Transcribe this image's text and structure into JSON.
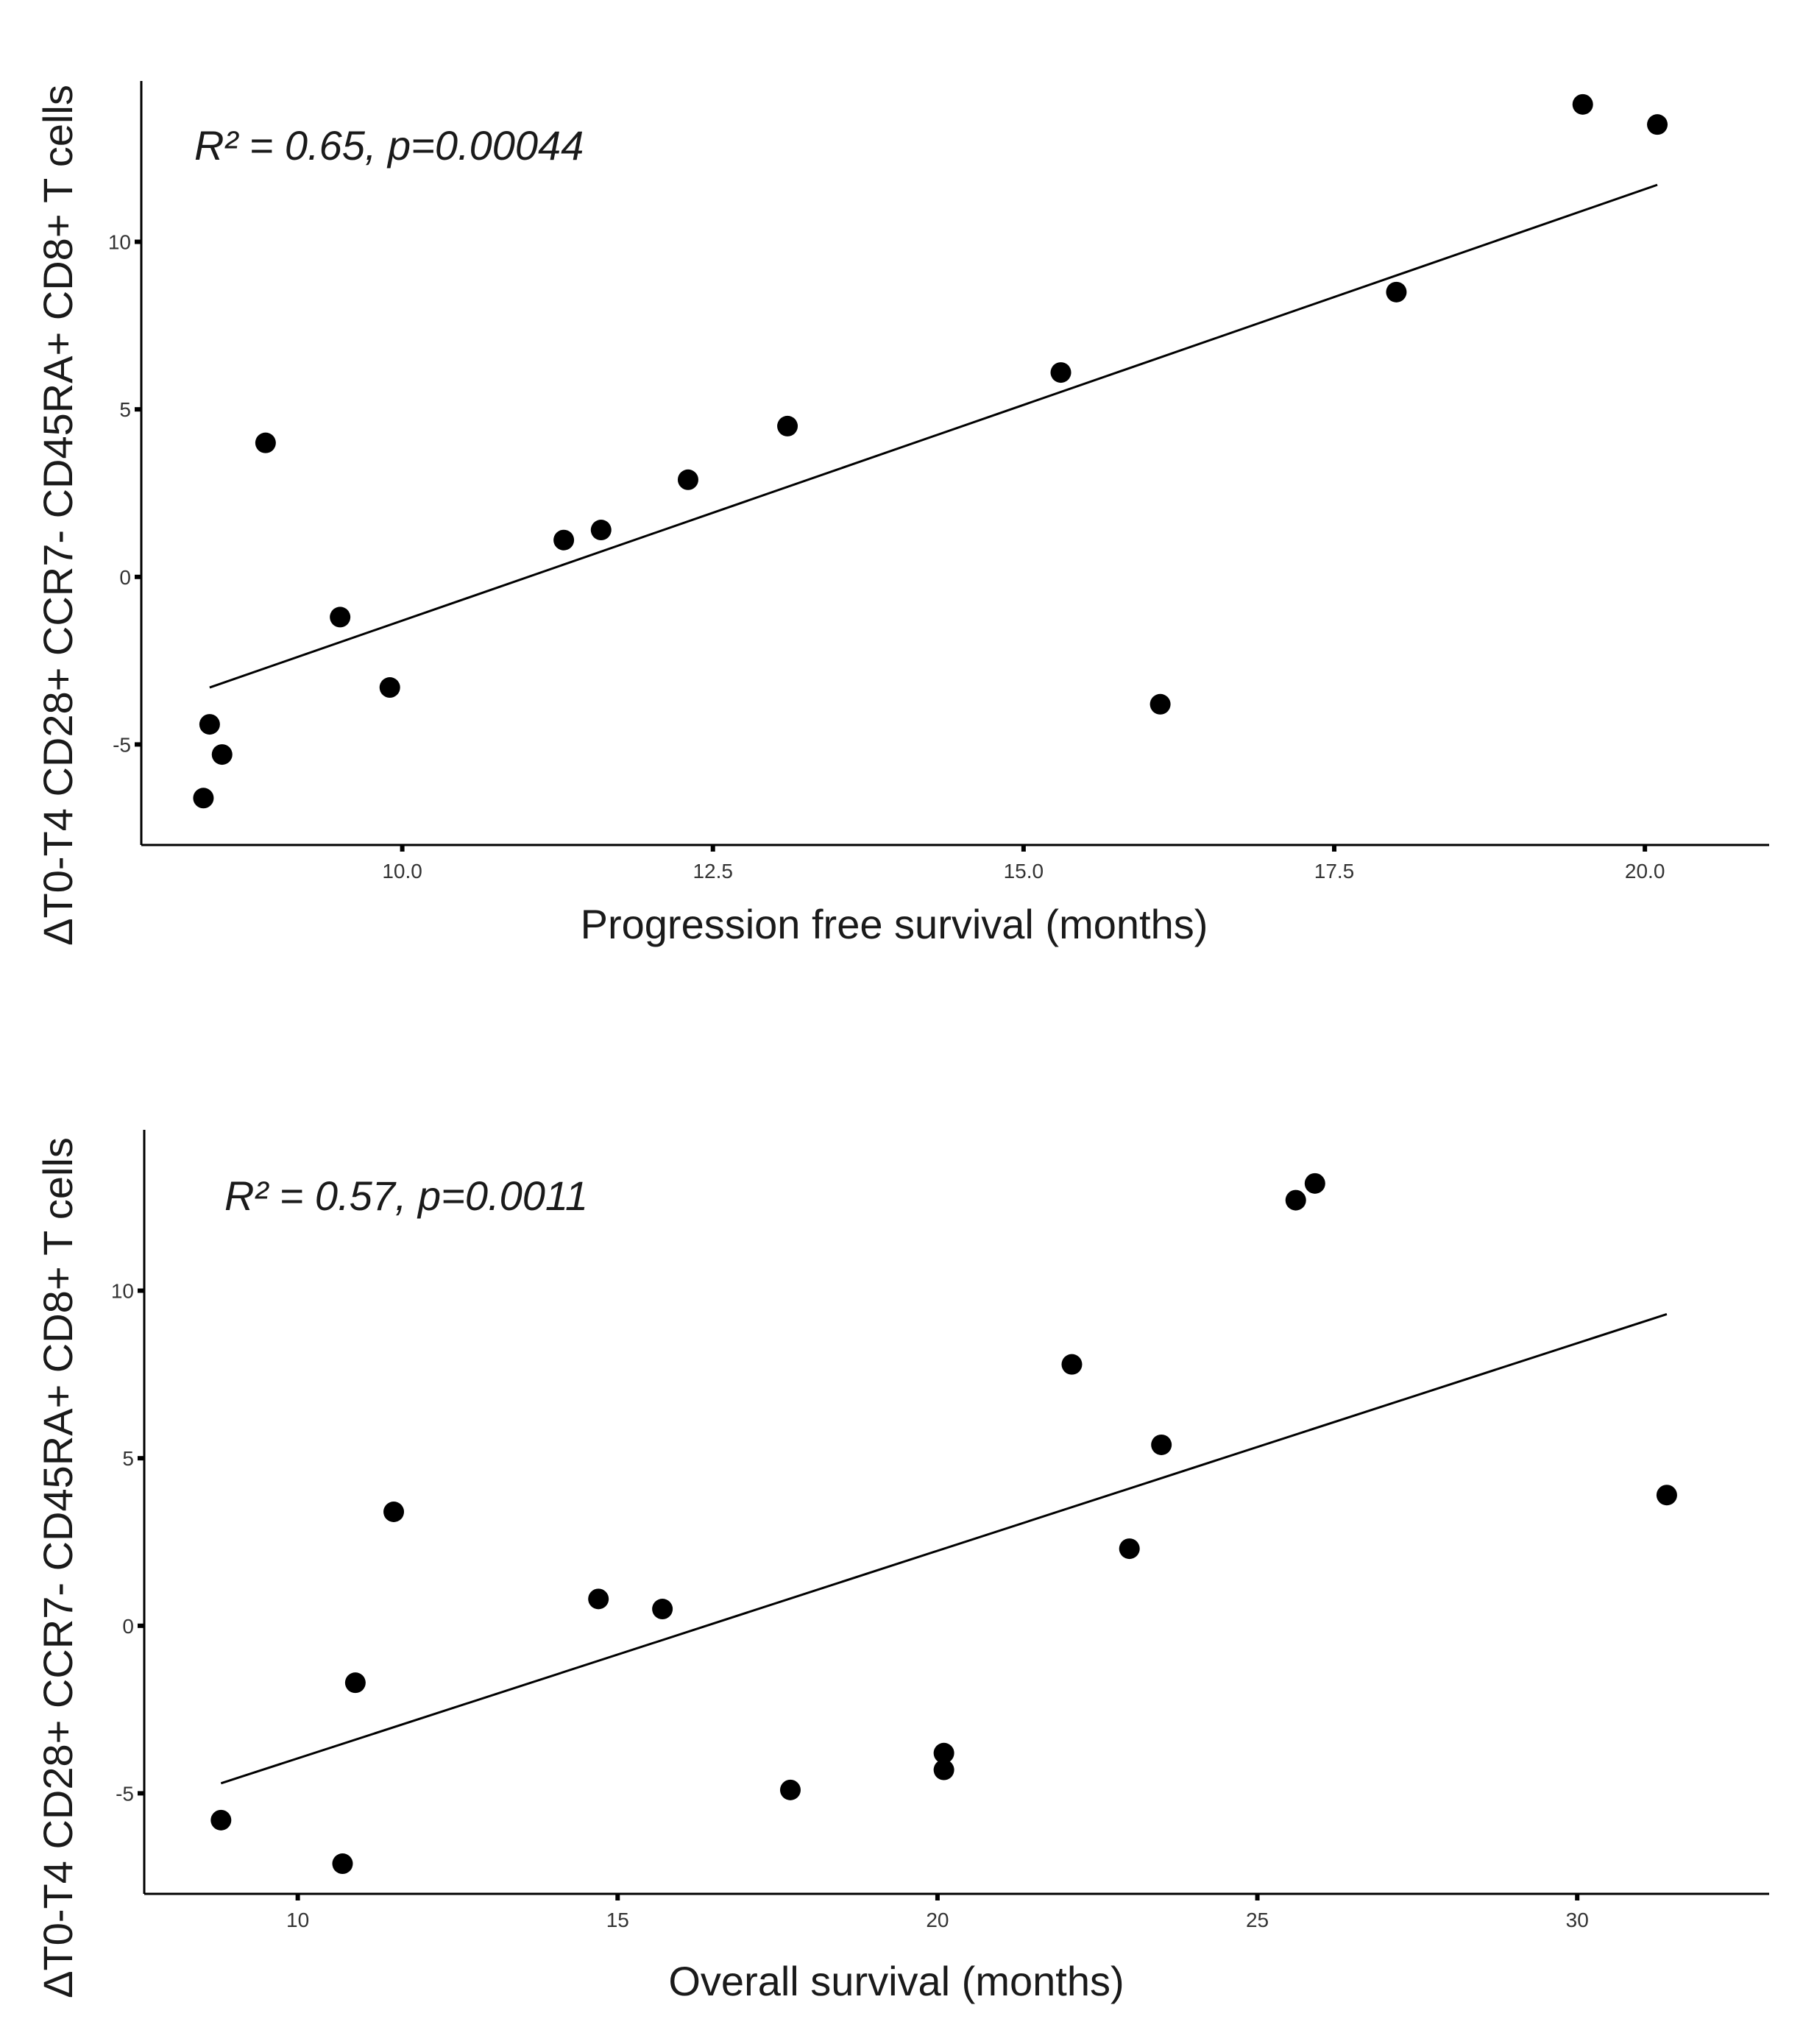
{
  "chart_data": [
    {
      "type": "scatter",
      "xlabel": "Progression free survival (months)",
      "ylabel": "ΔT0-T4 CD28+ CCR7- CD45RA+ CD8+ T cells",
      "annotation": "R² = 0.65, p=0.00044",
      "xlim": [
        7.9,
        21.0
      ],
      "ylim": [
        -8.0,
        14.8
      ],
      "xticks": [
        10.0,
        12.5,
        15.0,
        17.5,
        20.0
      ],
      "xtick_labels": [
        "10.0",
        "12.5",
        "15.0",
        "17.5",
        "20.0"
      ],
      "yticks": [
        -5,
        0,
        5,
        10
      ],
      "ytick_labels": [
        "-5",
        "0",
        "5",
        "10"
      ],
      "grid": false,
      "points": [
        {
          "x": 8.4,
          "y": -6.6
        },
        {
          "x": 8.45,
          "y": -4.4
        },
        {
          "x": 8.55,
          "y": -5.3
        },
        {
          "x": 8.9,
          "y": 4.0
        },
        {
          "x": 9.5,
          "y": -1.2
        },
        {
          "x": 9.9,
          "y": -3.3
        },
        {
          "x": 11.3,
          "y": 1.1
        },
        {
          "x": 11.6,
          "y": 1.4
        },
        {
          "x": 12.3,
          "y": 2.9
        },
        {
          "x": 13.1,
          "y": 4.5
        },
        {
          "x": 15.3,
          "y": 6.1
        },
        {
          "x": 16.1,
          "y": -3.8
        },
        {
          "x": 18.0,
          "y": 8.5
        },
        {
          "x": 19.5,
          "y": 14.1
        },
        {
          "x": 20.1,
          "y": 13.5
        }
      ],
      "fit_line": {
        "x": [
          8.45,
          20.1
        ],
        "y": [
          -3.3,
          11.7
        ]
      }
    },
    {
      "type": "scatter",
      "xlabel": "Overall survival (months)",
      "ylabel": "ΔT0-T4 CD28+ CCR7- CD45RA+ CD8+ T cells",
      "annotation": "R² = 0.57, p=0.0011",
      "xlim": [
        7.6,
        33.0
      ],
      "ylim": [
        -8.0,
        14.8
      ],
      "xticks": [
        10,
        15,
        20,
        25,
        30
      ],
      "xtick_labels": [
        "10",
        "15",
        "20",
        "25",
        "30"
      ],
      "yticks": [
        -5,
        0,
        5,
        10
      ],
      "ytick_labels": [
        "-5",
        "0",
        "5",
        "10"
      ],
      "grid": false,
      "points": [
        {
          "x": 8.8,
          "y": -5.8
        },
        {
          "x": 10.7,
          "y": -7.1
        },
        {
          "x": 10.9,
          "y": -1.7
        },
        {
          "x": 11.5,
          "y": 3.4
        },
        {
          "x": 14.7,
          "y": 0.8
        },
        {
          "x": 15.7,
          "y": 0.5
        },
        {
          "x": 17.7,
          "y": -4.9
        },
        {
          "x": 20.1,
          "y": -3.8
        },
        {
          "x": 20.1,
          "y": -4.3
        },
        {
          "x": 22.1,
          "y": 7.8
        },
        {
          "x": 23.0,
          "y": 2.3
        },
        {
          "x": 23.5,
          "y": 5.4
        },
        {
          "x": 25.6,
          "y": 12.7
        },
        {
          "x": 25.9,
          "y": 13.2
        },
        {
          "x": 31.4,
          "y": 3.9
        }
      ],
      "fit_line": {
        "x": [
          8.8,
          31.4
        ],
        "y": [
          -4.7,
          9.3
        ]
      }
    }
  ]
}
